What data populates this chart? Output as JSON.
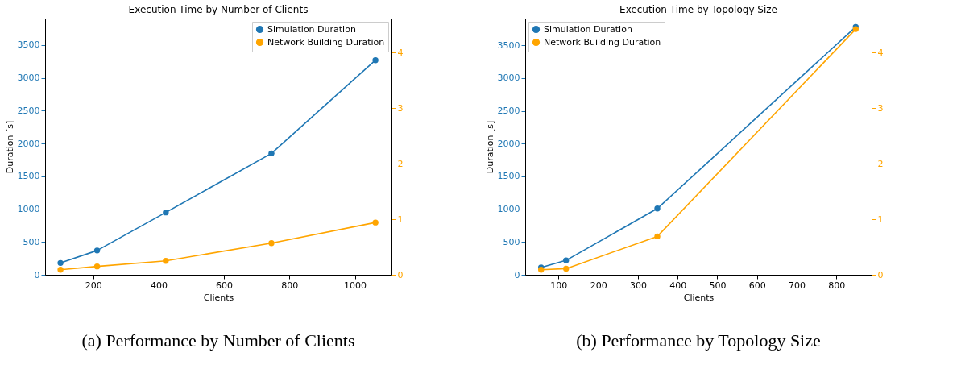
{
  "chart_data": [
    {
      "type": "line",
      "title": "Execution Time by Number of Clients",
      "xlabel": "Clients",
      "ylabel": "Duration [s]",
      "x": [
        100,
        212,
        422,
        745,
        1063
      ],
      "series": [
        {
          "name": "Simulation Duration",
          "color": "#1f77b4",
          "values": [
            180,
            370,
            950,
            1850,
            3270
          ]
        },
        {
          "name": "Network Building Duration",
          "color": "#ffa500",
          "values": [
            0.09,
            0.15,
            0.25,
            0.57,
            0.94
          ],
          "axis": "y2"
        }
      ],
      "xlim": [
        53,
        1112
      ],
      "xticks": [
        200,
        400,
        600,
        800,
        1000
      ],
      "ylim": [
        0,
        3905
      ],
      "yticks": [
        0,
        500,
        1000,
        1500,
        2000,
        2500,
        3000,
        3500
      ],
      "y2lim": [
        0,
        4.61
      ],
      "y2ticks": [
        0,
        1,
        2,
        3,
        4
      ],
      "legend": "top right",
      "grid": false,
      "marker": "circle",
      "line_style": "solid",
      "annotations": [
        "(a) Performance by Number of Clients"
      ]
    },
    {
      "type": "line",
      "title": "Execution Time by Topology Size",
      "xlabel": "Clients",
      "ylabel": "Duration [s]",
      "x": [
        56,
        119,
        349,
        849
      ],
      "series": [
        {
          "name": "Simulation Duration",
          "color": "#1f77b4",
          "values": [
            110,
            220,
            1010,
            3780
          ]
        },
        {
          "name": "Network Building Duration",
          "color": "#ffa500",
          "values": [
            0.09,
            0.11,
            0.69,
            4.42
          ],
          "axis": "y2"
        }
      ],
      "xlim": [
        16,
        889
      ],
      "xticks": [
        100,
        200,
        300,
        400,
        500,
        600,
        700,
        800
      ],
      "ylim": [
        0,
        3908
      ],
      "yticks": [
        0,
        500,
        1000,
        1500,
        2000,
        2500,
        3000,
        3500
      ],
      "y2lim": [
        0,
        4.61
      ],
      "y2ticks": [
        0,
        1,
        2,
        3,
        4
      ],
      "legend": "top left",
      "grid": false,
      "marker": "circle",
      "line_style": "solid",
      "annotations": [
        "(b) Performance by Topology Size"
      ]
    }
  ]
}
